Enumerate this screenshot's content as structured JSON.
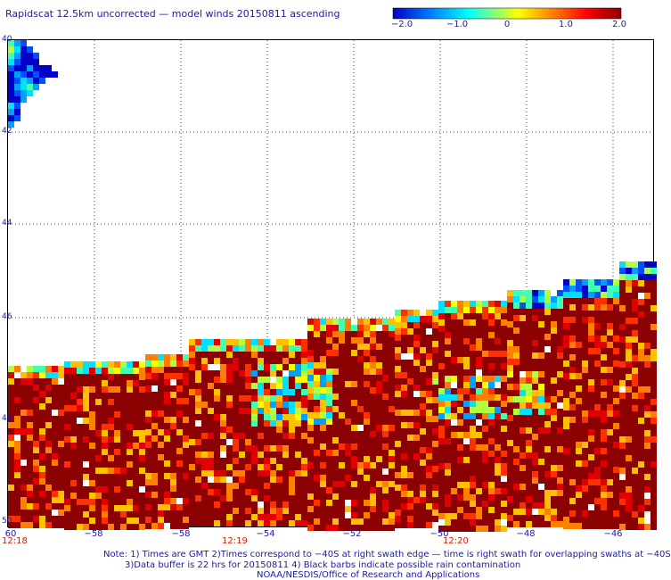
{
  "title": "Rapidscat 12.5km uncorrected — model winds 20150811 ascending",
  "colorbar": {
    "labels": [
      "−2.0",
      "−1.0",
      "0",
      "1.0",
      "2.0"
    ],
    "colors": [
      "#0000c8",
      "#0080ff",
      "#00ffff",
      "#ffff00",
      "#ff8000",
      "#ff0000",
      "#8b0000"
    ]
  },
  "plot": {
    "y_ticks": [
      "40",
      "42",
      "44",
      "46",
      "48",
      "50"
    ],
    "x_ticks": [
      "60",
      "−58",
      "−56",
      "−54",
      "−52",
      "−50",
      "−48",
      "−46"
    ],
    "duplicate_x_ticks_note": "as printed",
    "time_labels": [
      "12:18",
      "12:19",
      "12:20"
    ],
    "grid": "dotted",
    "swath_color": "#8b0000"
  },
  "notes": {
    "line1": "Note: 1) Times are GMT 2)Times correspond to −40S at right swath edge — time is right swath for overlapping swaths at −40S",
    "line2": "3)Data buffer is 22 hrs for 20150811 4) Black barbs indicate possible rain contamination",
    "line3": "NOAA/NESDIS/Office of Research and Applications"
  }
}
